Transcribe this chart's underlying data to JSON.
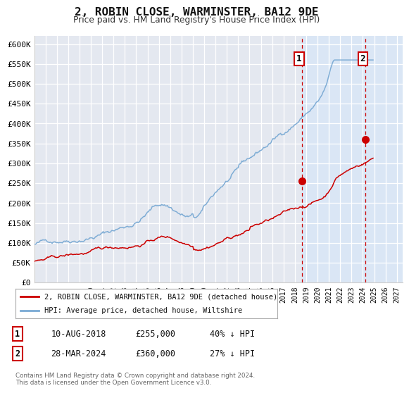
{
  "title": "2, ROBIN CLOSE, WARMINSTER, BA12 9DE",
  "subtitle": "Price paid vs. HM Land Registry's House Price Index (HPI)",
  "background_color": "#ffffff",
  "plot_bg_color": "#e4e8f0",
  "grid_color": "#ffffff",
  "red_line_color": "#cc0000",
  "blue_line_color": "#7aaad4",
  "vline_color": "#cc0000",
  "highlight_bg_color": "#dae6f5",
  "ylim": [
    0,
    620000
  ],
  "xlim_start": 1995,
  "xlim_end": 2027.5,
  "ytick_labels": [
    "£0",
    "£50K",
    "£100K",
    "£150K",
    "£200K",
    "£250K",
    "£300K",
    "£350K",
    "£400K",
    "£450K",
    "£500K",
    "£550K",
    "£600K"
  ],
  "ytick_values": [
    0,
    50000,
    100000,
    150000,
    200000,
    250000,
    300000,
    350000,
    400000,
    450000,
    500000,
    550000,
    600000
  ],
  "xtick_years": [
    1995,
    1996,
    1997,
    1998,
    1999,
    2000,
    2001,
    2002,
    2003,
    2004,
    2005,
    2006,
    2007,
    2008,
    2009,
    2010,
    2011,
    2012,
    2013,
    2014,
    2015,
    2016,
    2017,
    2018,
    2019,
    2020,
    2021,
    2022,
    2023,
    2024,
    2025,
    2026,
    2027
  ],
  "event1_x": 2018.62,
  "event1_y": 255000,
  "event1_label": "1",
  "event2_x": 2024.25,
  "event2_y": 360000,
  "event2_label": "2",
  "legend_line1": "2, ROBIN CLOSE, WARMINSTER, BA12 9DE (detached house)",
  "legend_line2": "HPI: Average price, detached house, Wiltshire",
  "table_row1": [
    "1",
    "10-AUG-2018",
    "£255,000",
    "40% ↓ HPI"
  ],
  "table_row2": [
    "2",
    "28-MAR-2024",
    "£360,000",
    "27% ↓ HPI"
  ],
  "footer": "Contains HM Land Registry data © Crown copyright and database right 2024.\nThis data is licensed under the Open Government Licence v3.0."
}
